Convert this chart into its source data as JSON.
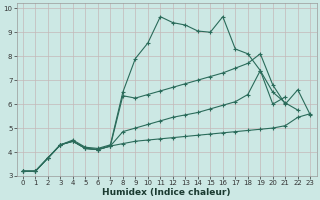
{
  "xlabel": "Humidex (Indice chaleur)",
  "bg_color": "#cce8e4",
  "line_color": "#2a6b5a",
  "grid_color": "#c4b8b8",
  "xlim": [
    -0.5,
    23.5
  ],
  "ylim": [
    3,
    10.2
  ],
  "xticks": [
    0,
    1,
    2,
    3,
    4,
    5,
    6,
    7,
    8,
    9,
    10,
    11,
    12,
    13,
    14,
    15,
    16,
    17,
    18,
    19,
    20,
    21,
    22,
    23
  ],
  "yticks": [
    3,
    4,
    5,
    6,
    7,
    8,
    9,
    10
  ],
  "lines": [
    {
      "x": [
        0,
        1,
        2,
        3,
        4,
        5,
        6,
        7,
        8,
        9,
        10,
        11,
        12,
        13,
        14,
        15,
        16,
        17,
        18,
        19,
        20,
        21
      ],
      "y": [
        3.2,
        3.2,
        3.75,
        4.3,
        4.5,
        4.2,
        4.15,
        4.3,
        6.5,
        7.9,
        8.55,
        9.65,
        9.4,
        9.3,
        9.05,
        9.0,
        9.65,
        8.3,
        8.1,
        7.4,
        6.0,
        6.3
      ]
    },
    {
      "x": [
        0,
        1,
        2,
        3,
        4,
        5,
        6,
        7,
        8,
        9,
        10,
        11,
        12,
        13,
        14,
        15,
        16,
        17,
        18,
        19,
        20,
        21,
        22,
        23
      ],
      "y": [
        3.2,
        3.2,
        3.75,
        4.3,
        4.45,
        4.15,
        4.1,
        4.25,
        4.35,
        4.45,
        4.5,
        4.55,
        4.6,
        4.65,
        4.7,
        4.75,
        4.8,
        4.85,
        4.9,
        4.95,
        5.0,
        5.1,
        5.45,
        5.6
      ]
    },
    {
      "x": [
        0,
        1,
        2,
        3,
        4,
        5,
        6,
        7,
        8,
        9,
        10,
        11,
        12,
        13,
        14,
        15,
        16,
        17,
        18,
        19,
        20,
        21,
        22
      ],
      "y": [
        3.2,
        3.2,
        3.75,
        4.3,
        4.45,
        4.15,
        4.1,
        4.25,
        4.85,
        5.0,
        5.15,
        5.3,
        5.45,
        5.55,
        5.65,
        5.8,
        5.95,
        6.1,
        6.4,
        7.4,
        6.5,
        6.05,
        5.75
      ]
    },
    {
      "x": [
        0,
        1,
        2,
        3,
        4,
        5,
        6,
        7,
        8,
        9,
        10,
        11,
        12,
        13,
        14,
        15,
        16,
        17,
        18,
        19,
        20,
        21,
        22,
        23
      ],
      "y": [
        3.2,
        3.2,
        3.75,
        4.3,
        4.45,
        4.15,
        4.1,
        4.25,
        6.35,
        6.25,
        6.4,
        6.55,
        6.7,
        6.85,
        7.0,
        7.15,
        7.3,
        7.5,
        7.7,
        8.1,
        6.8,
        6.0,
        6.6,
        5.55
      ]
    }
  ]
}
